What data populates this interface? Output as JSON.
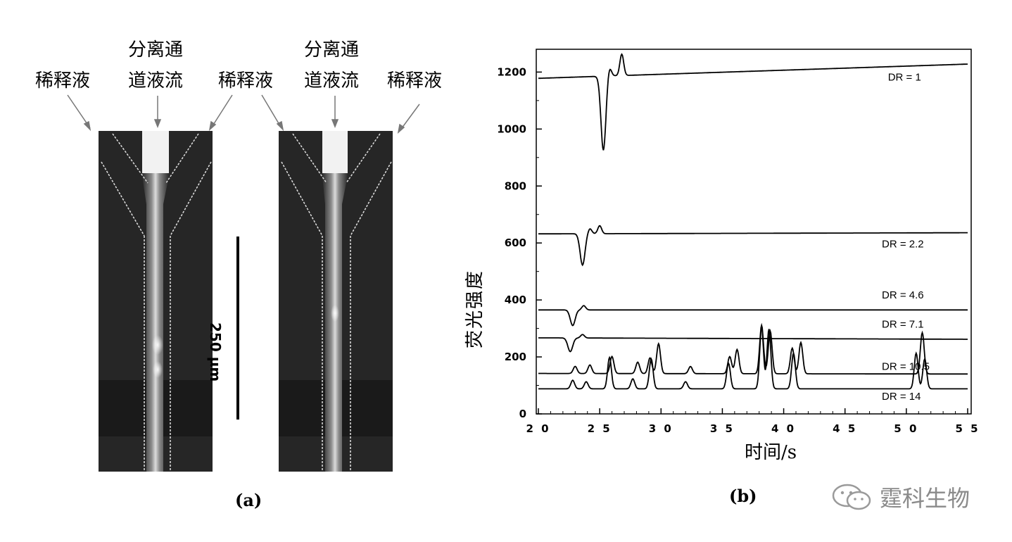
{
  "panel_a": {
    "label": "(a)",
    "left_channel": {
      "left_label": "稀释液",
      "center_label_line1": "分离通",
      "center_label_line2": "道液流",
      "right_label": "稀释液"
    },
    "right_channel": {
      "center_label_line1": "分离通",
      "center_label_line2": "道液流",
      "right_label": "稀释液"
    },
    "scale_bar_label": "250 µm"
  },
  "panel_b": {
    "label": "(b)"
  },
  "watermark": {
    "text": "霆科生物",
    "icon": "wechat-icon"
  },
  "chart_data": {
    "type": "line",
    "title": "",
    "xlabel": "时间/s",
    "ylabel": "荧光强度",
    "xlim": [
      20,
      55
    ],
    "ylim": [
      0,
      1280
    ],
    "x_ticks": [
      "2 0",
      "2 5",
      "3 0",
      "3 5",
      "4 0",
      "4 5",
      "5 0",
      "5 5"
    ],
    "y_ticks": [
      "0",
      "200",
      "400",
      "600",
      "800",
      "1000",
      "1200"
    ],
    "peak_times": [
      23.2,
      23.9,
      25.9,
      27.8,
      29.3,
      29.8,
      32.1,
      35.7,
      38.4,
      38.8,
      40.9,
      41.4,
      50.8,
      51.4
    ],
    "series": [
      {
        "name": "DR = 1",
        "label_x": 48.5,
        "label_y": 1170,
        "baseline_start": 1178,
        "baseline_end": 1228,
        "dip": {
          "x": 25.3,
          "depth": 260
        },
        "bumps": [
          {
            "x": 25.8,
            "h": 30
          },
          {
            "x": 26.8,
            "h": 75
          }
        ]
      },
      {
        "name": "DR = 2.2",
        "label_x": 48.0,
        "label_y": 585,
        "baseline_start": 632,
        "baseline_end": 636,
        "dip": {
          "x": 23.6,
          "depth": 110
        },
        "bumps": [
          {
            "x": 24.2,
            "h": 18
          },
          {
            "x": 25.0,
            "h": 28
          }
        ]
      },
      {
        "name": "DR = 4.6",
        "label_x": 48.0,
        "label_y": 405,
        "baseline_start": 365,
        "baseline_end": 365,
        "dip": {
          "x": 22.8,
          "depth": 55
        },
        "bumps": [
          {
            "x": 23.7,
            "h": 15
          }
        ]
      },
      {
        "name": "DR = 7.1",
        "label_x": 48.0,
        "label_y": 303,
        "baseline_start": 267,
        "baseline_end": 262,
        "dip": {
          "x": 22.6,
          "depth": 48
        },
        "bumps": [
          {
            "x": 23.6,
            "h": 12
          }
        ]
      },
      {
        "name": "DR = 10.5",
        "label_x": 48.0,
        "label_y": 155,
        "baseline_start": 142,
        "baseline_end": 140,
        "dip": null,
        "bumps": [
          {
            "x": 23.0,
            "h": 25
          },
          {
            "x": 24.2,
            "h": 30
          },
          {
            "x": 26.0,
            "h": 60
          },
          {
            "x": 28.1,
            "h": 40
          },
          {
            "x": 29.1,
            "h": 55
          },
          {
            "x": 29.8,
            "h": 105
          },
          {
            "x": 32.4,
            "h": 25
          },
          {
            "x": 35.6,
            "h": 60
          },
          {
            "x": 36.2,
            "h": 85
          },
          {
            "x": 38.2,
            "h": 170
          },
          {
            "x": 38.9,
            "h": 150
          },
          {
            "x": 40.7,
            "h": 90
          },
          {
            "x": 41.4,
            "h": 110
          },
          {
            "x": 51.3,
            "h": 145
          }
        ]
      },
      {
        "name": "DR = 14",
        "label_x": 48.0,
        "label_y": 50,
        "baseline_start": 88,
        "baseline_end": 88,
        "dip": null,
        "bumps": [
          {
            "x": 22.8,
            "h": 30
          },
          {
            "x": 23.9,
            "h": 25
          },
          {
            "x": 25.8,
            "h": 110
          },
          {
            "x": 27.7,
            "h": 35
          },
          {
            "x": 29.2,
            "h": 105
          },
          {
            "x": 32.0,
            "h": 25
          },
          {
            "x": 35.5,
            "h": 90
          },
          {
            "x": 38.2,
            "h": 215
          },
          {
            "x": 38.8,
            "h": 210
          },
          {
            "x": 40.8,
            "h": 125
          },
          {
            "x": 50.8,
            "h": 125
          },
          {
            "x": 51.5,
            "h": 105
          }
        ]
      }
    ]
  }
}
